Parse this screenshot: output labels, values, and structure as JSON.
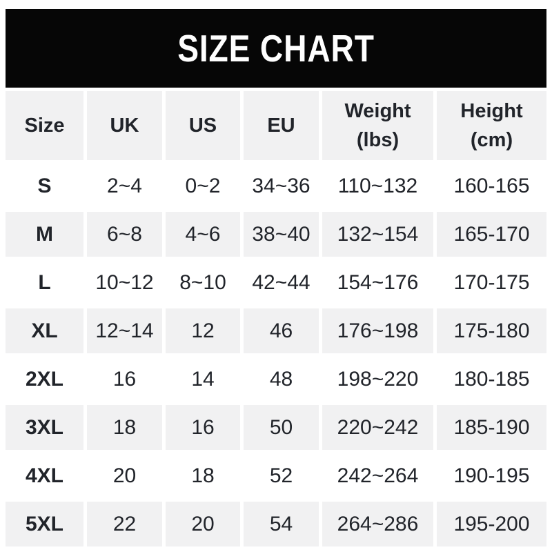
{
  "banner": {
    "title": "SIZE CHART",
    "background_color": "#060606",
    "text_color": "#fefefe"
  },
  "chart_data": {
    "type": "table",
    "title": "SIZE CHART",
    "columns": [
      "Size",
      "UK",
      "US",
      "EU",
      "Weight\n(lbs)",
      "Height\n(cm)"
    ],
    "rows": [
      [
        "S",
        "2~4",
        "0~2",
        "34~36",
        "110~132",
        "160-165"
      ],
      [
        "M",
        "6~8",
        "4~6",
        "38~40",
        "132~154",
        "165-170"
      ],
      [
        "L",
        "10~12",
        "8~10",
        "42~44",
        "154~176",
        "170-175"
      ],
      [
        "XL",
        "12~14",
        "12",
        "46",
        "176~198",
        "175-180"
      ],
      [
        "2XL",
        "16",
        "14",
        "48",
        "198~220",
        "180-185"
      ],
      [
        "3XL",
        "18",
        "16",
        "50",
        "220~242",
        "185-190"
      ],
      [
        "4XL",
        "20",
        "18",
        "52",
        "242~264",
        "190-195"
      ],
      [
        "5XL",
        "22",
        "20",
        "54",
        "264~286",
        "195-200"
      ]
    ],
    "layout": {
      "striped": true,
      "header_background": "#f1f1f2",
      "stripe_background": "#f1f1f2",
      "plain_row_background": "#ffffff",
      "gutter_color": "#ffffff",
      "text_color": "#21242a",
      "stripe_pattern": "header gray, then rows alternate white/gray starting with white"
    }
  }
}
